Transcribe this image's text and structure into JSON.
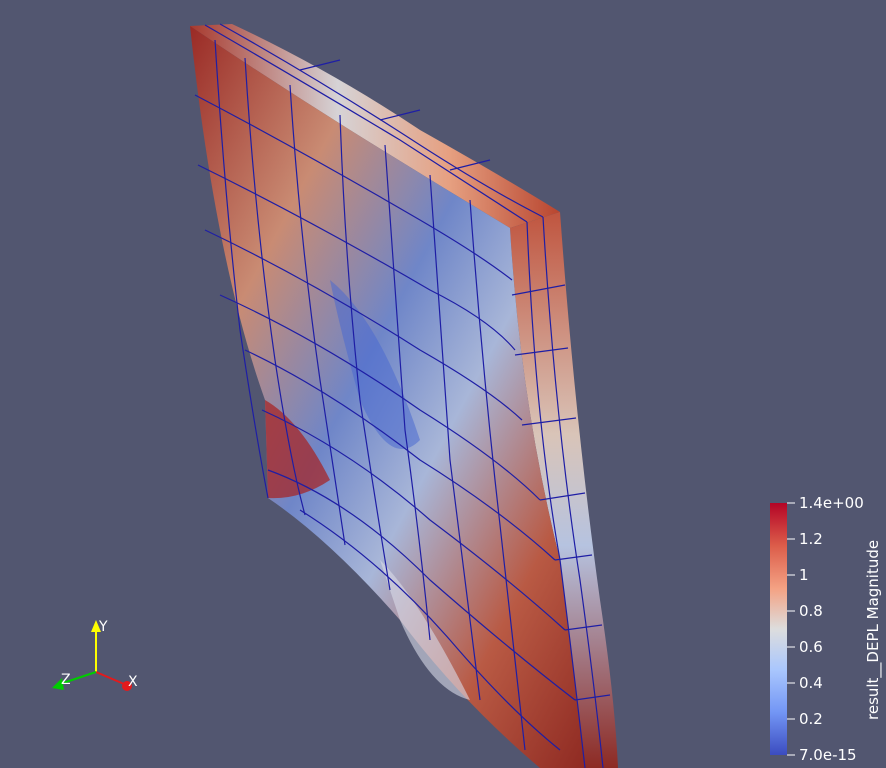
{
  "scalar_bar": {
    "title": "result__DEPL Magnitude",
    "ticks": [
      "1.4e+00",
      "1.2",
      "1",
      "0.8",
      "0.6",
      "0.4",
      "0.2",
      "7.0e-15"
    ],
    "range": [
      7e-15,
      1.4
    ],
    "colormap": [
      "#b40426",
      "#e7745b",
      "#f7b89c",
      "#dddddd",
      "#aac7fd",
      "#7396f5",
      "#3b4cc0"
    ]
  },
  "orientation_axes": {
    "x_label": "X",
    "y_label": "Y",
    "z_label": "Z",
    "x_color": "#e31a1c",
    "y_color": "#ffff00",
    "z_color": "#00cc00"
  },
  "mesh": {
    "edge_color": "#1a1a99",
    "background_color": "#525670"
  }
}
